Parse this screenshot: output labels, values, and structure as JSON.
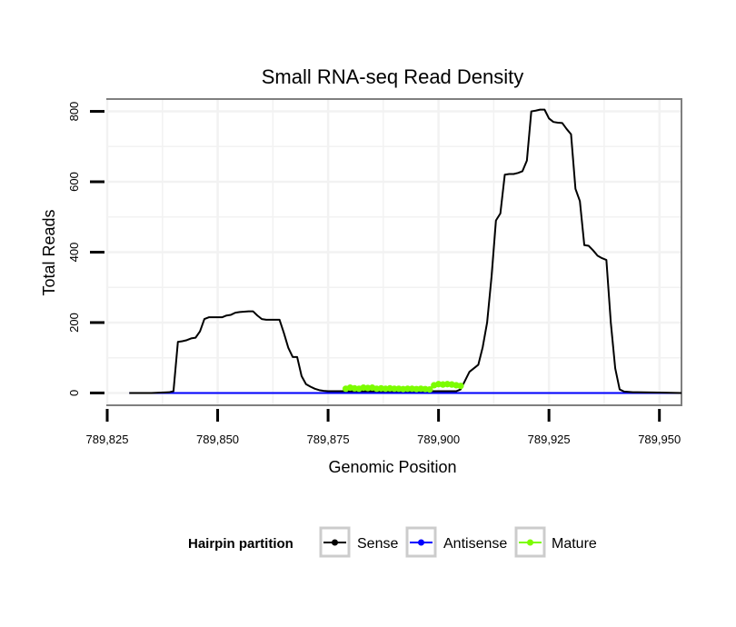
{
  "chart_data": {
    "type": "line",
    "title": "Small RNA-seq Read Density",
    "xlabel": "Genomic Position",
    "ylabel": "Total Reads",
    "xlim": [
      789825,
      789955
    ],
    "ylim": [
      -35,
      835
    ],
    "x_ticks": [
      789825,
      789850,
      789875,
      789900,
      789925,
      789950
    ],
    "x_tick_labels": [
      "789,825",
      "789,850",
      "789,875",
      "789,900",
      "789,925",
      "789,950"
    ],
    "y_ticks": [
      0,
      200,
      400,
      600,
      800
    ],
    "y_tick_labels": [
      "0",
      "200",
      "400",
      "600",
      "800"
    ],
    "grid": true,
    "legend": {
      "title": "Hairpin partition",
      "position": "bottom",
      "entries": [
        {
          "label": "Sense",
          "color": "#000000"
        },
        {
          "label": "Antisense",
          "color": "#0000ff"
        },
        {
          "label": "Mature",
          "color": "#7cfc00"
        }
      ]
    },
    "series": [
      {
        "name": "Sense",
        "color": "#000000",
        "x": [
          789830,
          789835,
          789839,
          789840,
          789841,
          789842,
          789843,
          789844,
          789845,
          789846,
          789847,
          789848,
          789849,
          789850,
          789851,
          789852,
          789853,
          789854,
          789855,
          789856,
          789857,
          789858,
          789859,
          789860,
          789861,
          789862,
          789863,
          789864,
          789865,
          789866,
          789867,
          789868,
          789869,
          789870,
          789871,
          789872,
          789873,
          789874,
          789875,
          789876,
          789877,
          789878,
          789879,
          789880,
          789885,
          789890,
          789895,
          789900,
          789902,
          789904,
          789905,
          789906,
          789907,
          789908,
          789909,
          789910,
          789911,
          789912,
          789913,
          789914,
          789915,
          789916,
          789917,
          789918,
          789919,
          789920,
          789921,
          789922,
          789923,
          789924,
          789925,
          789926,
          789927,
          789928,
          789929,
          789930,
          789931,
          789932,
          789933,
          789934,
          789935,
          789936,
          789937,
          789938,
          789939,
          789940,
          789941,
          789942,
          789943,
          789944,
          789945,
          789950,
          789955
        ],
        "y": [
          0,
          0,
          2,
          5,
          145,
          147,
          150,
          155,
          157,
          175,
          210,
          215,
          215,
          215,
          215,
          220,
          222,
          228,
          230,
          231,
          232,
          232,
          220,
          210,
          208,
          208,
          208,
          208,
          170,
          128,
          102,
          102,
          48,
          25,
          18,
          12,
          8,
          6,
          5,
          5,
          5,
          5,
          5,
          5,
          5,
          5,
          5,
          5,
          5,
          5,
          10,
          35,
          60,
          70,
          80,
          130,
          200,
          330,
          490,
          510,
          620,
          622,
          622,
          625,
          630,
          660,
          800,
          802,
          805,
          805,
          780,
          770,
          768,
          767,
          750,
          735,
          580,
          545,
          420,
          418,
          405,
          390,
          383,
          378,
          200,
          70,
          10,
          4,
          3,
          2,
          2,
          1,
          0
        ]
      },
      {
        "name": "Antisense",
        "color": "#0000ff",
        "x": [
          789830,
          789955
        ],
        "y": [
          0,
          0
        ]
      },
      {
        "name": "Mature",
        "color": "#7cfc00",
        "x": [
          789879,
          789880,
          789881,
          789882,
          789883,
          789884,
          789885,
          789886,
          789887,
          789888,
          789889,
          789890,
          789891,
          789892,
          789893,
          789894,
          789895,
          789896,
          789897,
          789898,
          789899,
          789900,
          789901,
          789902,
          789903,
          789904,
          789905
        ],
        "y": [
          12,
          15,
          13,
          12,
          15,
          14,
          15,
          12,
          13,
          12,
          13,
          12,
          12,
          11,
          12,
          12,
          11,
          12,
          11,
          10,
          22,
          25,
          24,
          25,
          24,
          22,
          20
        ]
      }
    ]
  }
}
